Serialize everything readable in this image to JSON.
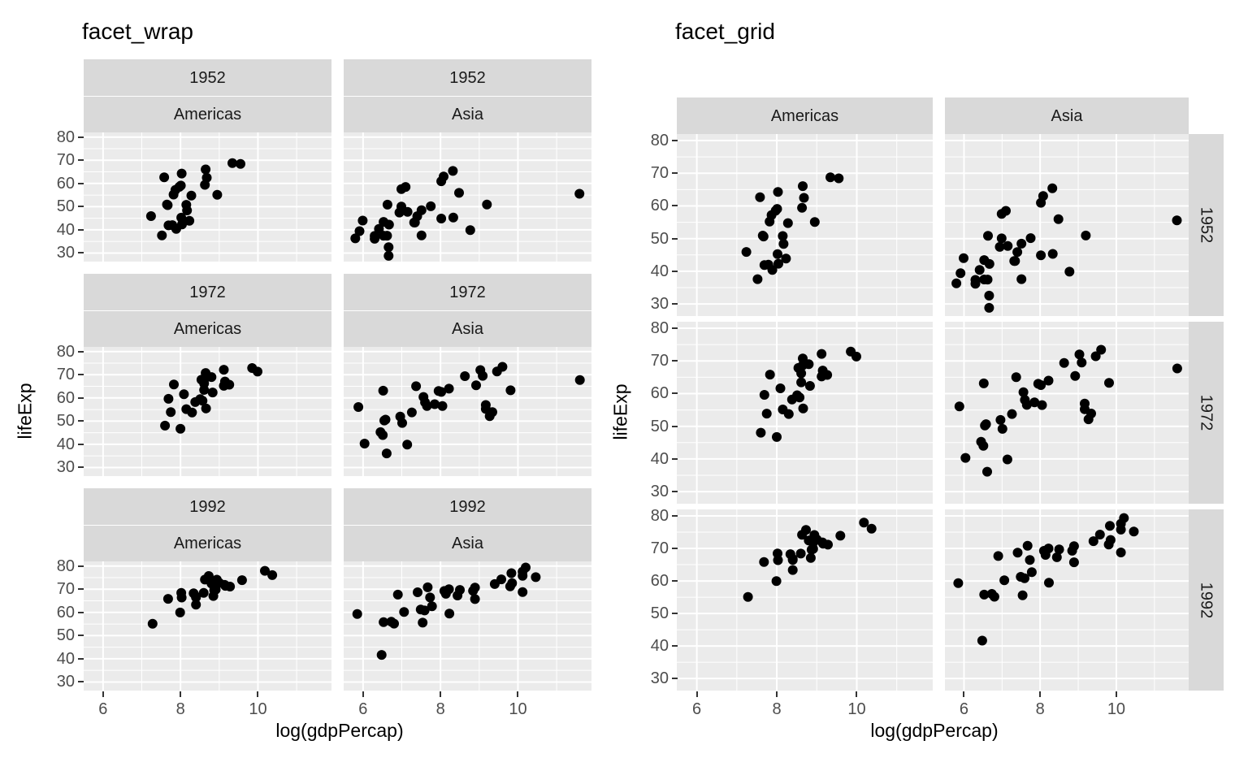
{
  "figure": {
    "charts": [
      {
        "title": "facet_wrap"
      },
      {
        "title": "facet_grid"
      }
    ],
    "x_axis_label": "log(gdpPercap)",
    "y_axis_label": "lifeExp"
  },
  "chart_data": {
    "type": "scatter",
    "xlabel": "log(gdpPercap)",
    "ylabel": "lifeExp",
    "x_ticks": [
      6,
      8,
      10
    ],
    "x_minor_ticks": [
      7,
      9,
      11
    ],
    "y_ticks": [
      30,
      40,
      50,
      60,
      70,
      80
    ],
    "y_minor_ticks": [
      35,
      45,
      55,
      65,
      75
    ],
    "xlim": [
      5.5,
      11.9
    ],
    "ylim": [
      26.3,
      82
    ],
    "grid": true,
    "legend": "none",
    "point_color": "#000000",
    "panel_background": "#EBEBEB",
    "strip_background": "#D9D9D9",
    "grid_color": "#FFFFFF",
    "tick_text_color": "#4D4D4D",
    "strip_text_color": "#1A1A1A",
    "years": [
      "1952",
      "1972",
      "1992"
    ],
    "continents": [
      "Americas",
      "Asia"
    ],
    "charts": [
      {
        "title": "facet_wrap",
        "facet_type": "wrap",
        "strips": "year and continent above each panel"
      },
      {
        "title": "facet_grid",
        "facet_type": "grid",
        "strips": "continent on top, year on right"
      }
    ],
    "facets": [
      {
        "year": "1952",
        "continent": "Americas",
        "points": [
          [
            8.68,
            62.48
          ],
          [
            7.89,
            40.41
          ],
          [
            7.65,
            50.92
          ],
          [
            9.34,
            68.75
          ],
          [
            8.28,
            54.74
          ],
          [
            7.67,
            50.64
          ],
          [
            7.87,
            57.21
          ],
          [
            8.63,
            59.42
          ],
          [
            7.24,
            45.93
          ],
          [
            8.17,
            48.36
          ],
          [
            8.02,
            45.26
          ],
          [
            7.79,
            42.02
          ],
          [
            7.52,
            37.58
          ],
          [
            7.69,
            41.91
          ],
          [
            7.97,
            58.53
          ],
          [
            8.15,
            50.79
          ],
          [
            8.04,
            42.31
          ],
          [
            7.82,
            55.19
          ],
          [
            7.58,
            62.65
          ],
          [
            8.23,
            43.9
          ],
          [
            8.03,
            64.28
          ],
          [
            8.01,
            59.1
          ],
          [
            9.55,
            68.44
          ],
          [
            8.65,
            66.07
          ],
          [
            8.95,
            55.09
          ]
        ]
      },
      {
        "year": "1952",
        "continent": "Asia",
        "points": [
          [
            6.66,
            28.8
          ],
          [
            9.2,
            50.94
          ],
          [
            6.53,
            37.48
          ],
          [
            5.91,
            39.42
          ],
          [
            5.99,
            44.0
          ],
          [
            8.02,
            60.96
          ],
          [
            6.3,
            37.37
          ],
          [
            6.62,
            37.47
          ],
          [
            8.02,
            44.87
          ],
          [
            8.33,
            45.32
          ],
          [
            8.32,
            65.39
          ],
          [
            8.08,
            63.03
          ],
          [
            7.34,
            43.16
          ],
          [
            6.99,
            50.06
          ],
          [
            6.94,
            47.45
          ],
          [
            11.59,
            55.56
          ],
          [
            8.48,
            55.93
          ],
          [
            7.51,
            48.46
          ],
          [
            6.67,
            42.24
          ],
          [
            5.8,
            36.32
          ],
          [
            6.3,
            36.16
          ],
          [
            7.51,
            37.58
          ],
          [
            6.53,
            43.44
          ],
          [
            7.15,
            47.75
          ],
          [
            8.77,
            39.88
          ],
          [
            7.75,
            50.15
          ],
          [
            6.99,
            57.59
          ],
          [
            7.4,
            45.88
          ],
          [
            7.1,
            58.5
          ],
          [
            6.63,
            50.85
          ],
          [
            6.41,
            40.41
          ],
          [
            7.32,
            43.16
          ],
          [
            6.66,
            32.55
          ]
        ]
      },
      {
        "year": "1972",
        "continent": "Americas",
        "points": [
          [
            9.15,
            67.06
          ],
          [
            8.0,
            46.71
          ],
          [
            8.51,
            59.5
          ],
          [
            9.85,
            72.88
          ],
          [
            8.61,
            63.44
          ],
          [
            8.09,
            61.62
          ],
          [
            8.54,
            67.85
          ],
          [
            8.65,
            70.75
          ],
          [
            7.69,
            59.63
          ],
          [
            8.57,
            58.8
          ],
          [
            8.38,
            58.21
          ],
          [
            8.3,
            53.74
          ],
          [
            7.6,
            48.04
          ],
          [
            7.75,
            53.88
          ],
          [
            8.8,
            69.0
          ],
          [
            8.83,
            62.36
          ],
          [
            8.15,
            55.15
          ],
          [
            8.61,
            66.22
          ],
          [
            7.83,
            65.81
          ],
          [
            8.66,
            55.45
          ],
          [
            9.12,
            72.16
          ],
          [
            9.12,
            65.23
          ],
          [
            9.99,
            71.34
          ],
          [
            8.65,
            68.68
          ],
          [
            9.26,
            65.71
          ]
        ]
      },
      {
        "year": "1972",
        "continent": "Asia",
        "points": [
          [
            6.61,
            36.09
          ],
          [
            9.81,
            63.3
          ],
          [
            6.45,
            45.25
          ],
          [
            6.04,
            40.32
          ],
          [
            6.52,
            63.12
          ],
          [
            9.03,
            72.0
          ],
          [
            6.58,
            50.65
          ],
          [
            7.01,
            49.2
          ],
          [
            9.17,
            55.23
          ],
          [
            9.17,
            56.95
          ],
          [
            9.46,
            71.43
          ],
          [
            9.6,
            73.42
          ],
          [
            7.65,
            56.53
          ],
          [
            8.22,
            63.98
          ],
          [
            8.02,
            62.61
          ],
          [
            11.6,
            67.71
          ],
          [
            8.92,
            65.42
          ],
          [
            7.95,
            63.01
          ],
          [
            7.26,
            53.75
          ],
          [
            5.88,
            56.06
          ],
          [
            6.51,
            44.0
          ],
          [
            9.27,
            52.14
          ],
          [
            6.96,
            51.93
          ],
          [
            7.6,
            58.06
          ],
          [
            9.34,
            53.89
          ],
          [
            9.09,
            69.52
          ],
          [
            7.37,
            65.04
          ],
          [
            7.85,
            57.3
          ],
          [
            8.63,
            69.39
          ],
          [
            7.56,
            60.41
          ],
          [
            6.55,
            50.25
          ],
          [
            8.05,
            56.48
          ],
          [
            7.14,
            39.85
          ]
        ]
      },
      {
        "year": "1992",
        "continent": "Americas",
        "points": [
          [
            9.14,
            71.87
          ],
          [
            7.99,
            59.96
          ],
          [
            8.85,
            67.06
          ],
          [
            10.18,
            77.95
          ],
          [
            8.94,
            74.13
          ],
          [
            8.6,
            68.42
          ],
          [
            8.73,
            75.71
          ],
          [
            8.63,
            74.17
          ],
          [
            8.02,
            68.46
          ],
          [
            8.87,
            69.61
          ],
          [
            8.4,
            66.8
          ],
          [
            8.4,
            63.37
          ],
          [
            7.28,
            55.09
          ],
          [
            8.03,
            66.4
          ],
          [
            8.91,
            71.77
          ],
          [
            9.16,
            71.46
          ],
          [
            7.68,
            65.84
          ],
          [
            8.8,
            72.46
          ],
          [
            8.34,
            68.23
          ],
          [
            8.4,
            66.46
          ],
          [
            9.59,
            73.91
          ],
          [
            8.91,
            69.86
          ],
          [
            10.37,
            76.09
          ],
          [
            9.0,
            72.75
          ],
          [
            9.28,
            71.15
          ]
        ]
      },
      {
        "year": "1992",
        "continent": "Asia",
        "points": [
          [
            6.48,
            41.67
          ],
          [
            9.85,
            72.6
          ],
          [
            6.73,
            56.02
          ],
          [
            6.53,
            55.8
          ],
          [
            7.41,
            68.69
          ],
          [
            10.12,
            77.6
          ],
          [
            7.06,
            60.22
          ],
          [
            7.78,
            62.68
          ],
          [
            8.89,
            65.74
          ],
          [
            8.23,
            59.46
          ],
          [
            9.83,
            76.93
          ],
          [
            10.2,
            79.36
          ],
          [
            8.14,
            68.02
          ],
          [
            8.22,
            69.98
          ],
          [
            9.4,
            72.24
          ],
          [
            10.46,
            75.19
          ],
          [
            8.84,
            69.29
          ],
          [
            8.89,
            70.69
          ],
          [
            7.49,
            61.27
          ],
          [
            5.85,
            59.32
          ],
          [
            6.8,
            55.16
          ],
          [
            9.8,
            71.2
          ],
          [
            7.59,
            60.84
          ],
          [
            7.73,
            66.46
          ],
          [
            10.12,
            68.77
          ],
          [
            10.12,
            75.79
          ],
          [
            7.67,
            70.81
          ],
          [
            8.1,
            69.25
          ],
          [
            9.57,
            74.26
          ],
          [
            8.44,
            67.3
          ],
          [
            6.9,
            67.66
          ],
          [
            8.5,
            69.72
          ],
          [
            7.54,
            55.6
          ]
        ]
      }
    ]
  }
}
